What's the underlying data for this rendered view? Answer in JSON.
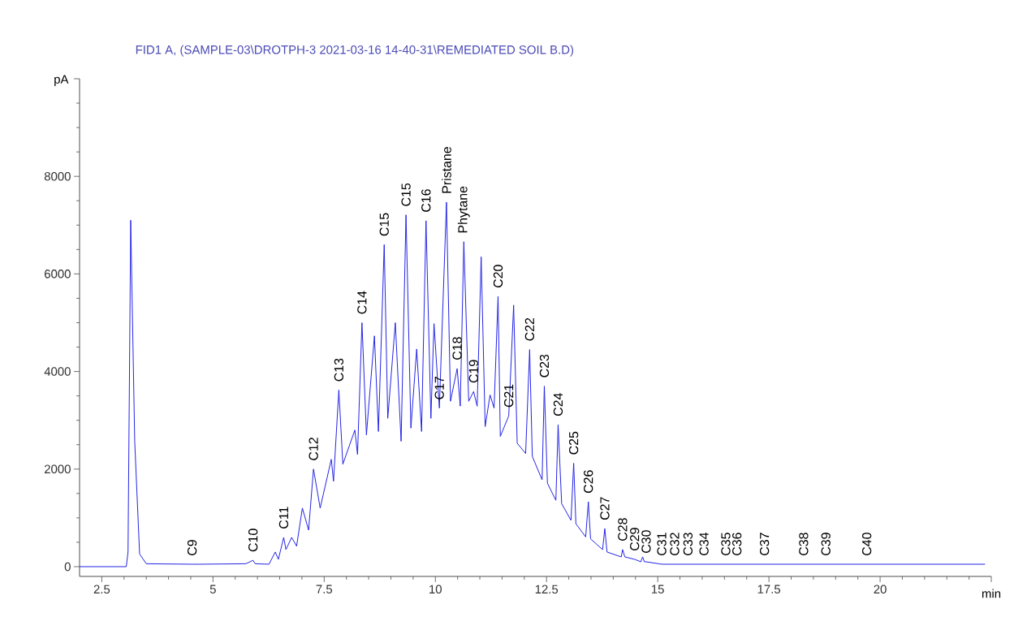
{
  "chart_data": {
    "type": "line",
    "title": "FID1 A,  (SAMPLE-03\\DROTPH-3 2021-03-16 14-40-31\\REMEDIATED SOIL B.D)",
    "xlabel": "min",
    "ylabel": "pA",
    "xlim": [
      2.0,
      22.5
    ],
    "ylim": [
      -200,
      10000
    ],
    "xticks": [
      2.5,
      5,
      7.5,
      10,
      12.5,
      15,
      17.5,
      20,
      {
        "value": 22.5,
        "label": null
      }
    ],
    "yticks": [
      0,
      2000,
      4000,
      6000,
      8000,
      {
        "value": 10000,
        "label": null
      }
    ],
    "series": [
      {
        "color": "#2323e6",
        "x": [
          2.0,
          3.05,
          3.09,
          3.15,
          3.24,
          3.35,
          3.5,
          4.53,
          4.7,
          5.74,
          5.9,
          5.95,
          6.26,
          6.4,
          6.47,
          6.59,
          6.64,
          6.77,
          6.88,
          7.01,
          7.15,
          7.26,
          7.41,
          7.66,
          7.71,
          7.83,
          7.92,
          8.19,
          8.25,
          8.35,
          8.45,
          8.63,
          8.72,
          8.85,
          8.93,
          9.1,
          9.23,
          9.34,
          9.45,
          9.58,
          9.69,
          9.79,
          9.9,
          9.97,
          10.09,
          10.25,
          10.34,
          10.49,
          10.56,
          10.64,
          10.75,
          10.86,
          10.94,
          11.03,
          11.12,
          11.23,
          11.32,
          11.41,
          11.46,
          11.65,
          11.76,
          11.84,
          12.03,
          12.12,
          12.18,
          12.4,
          12.45,
          12.52,
          12.71,
          12.76,
          12.84,
          13.05,
          13.11,
          13.16,
          13.38,
          13.44,
          13.49,
          13.76,
          13.81,
          13.86,
          14.18,
          14.21,
          14.26,
          14.48,
          14.62,
          14.66,
          14.7,
          14.74,
          15.09,
          15.38,
          15.68,
          16.04,
          16.4,
          16.53,
          16.78,
          17.4,
          18.28,
          18.78,
          19.7,
          22.36
        ],
        "values": [
          0,
          0,
          300,
          7100,
          2570,
          260,
          60,
          50,
          50,
          60,
          130,
          60,
          50,
          300,
          150,
          600,
          350,
          600,
          420,
          1200,
          750,
          2000,
          1200,
          2200,
          1750,
          3620,
          2100,
          2800,
          2300,
          5000,
          2700,
          4730,
          2770,
          6600,
          3040,
          5000,
          2570,
          7210,
          2840,
          4460,
          2770,
          7090,
          3040,
          4980,
          3250,
          7470,
          3390,
          4060,
          3290,
          6660,
          3390,
          3590,
          3290,
          6350,
          2870,
          3520,
          3250,
          5540,
          2670,
          3090,
          5360,
          2530,
          2320,
          4450,
          2260,
          1780,
          3700,
          1710,
          1360,
          2910,
          1290,
          950,
          2120,
          880,
          610,
          1330,
          570,
          350,
          780,
          300,
          200,
          350,
          200,
          150,
          100,
          200,
          100,
          100,
          50,
          50,
          50,
          50,
          50,
          50,
          50,
          50,
          50,
          50,
          50,
          50
        ]
      }
    ],
    "annotations": [
      {
        "text": "C9",
        "x": 4.53,
        "y": 50
      },
      {
        "text": "C10",
        "x": 5.9,
        "y": 130
      },
      {
        "text": "C11",
        "x": 6.59,
        "y": 600
      },
      {
        "text": "C12",
        "x": 7.26,
        "y": 2000
      },
      {
        "text": "C13",
        "x": 7.83,
        "y": 3620
      },
      {
        "text": "C14",
        "x": 8.35,
        "y": 5000
      },
      {
        "text": "C15",
        "x": 8.85,
        "y": 6600
      },
      {
        "text": "C15",
        "x": 9.34,
        "y": 7210
      },
      {
        "text": "C16",
        "x": 9.79,
        "y": 7090
      },
      {
        "text": "C17",
        "x": 10.09,
        "y": 3250
      },
      {
        "text": "Pristane",
        "x": 10.25,
        "y": 7470
      },
      {
        "text": "C18",
        "x": 10.49,
        "y": 4060
      },
      {
        "text": "Phytane",
        "x": 10.64,
        "y": 6660
      },
      {
        "text": "C19",
        "x": 10.86,
        "y": 3590
      },
      {
        "text": "C20",
        "x": 11.41,
        "y": 5540
      },
      {
        "text": "C21",
        "x": 11.65,
        "y": 3090
      },
      {
        "text": "C22",
        "x": 12.12,
        "y": 4450
      },
      {
        "text": "C23",
        "x": 12.45,
        "y": 3700
      },
      {
        "text": "C24",
        "x": 12.76,
        "y": 2910
      },
      {
        "text": "C25",
        "x": 13.11,
        "y": 2120
      },
      {
        "text": "C26",
        "x": 13.44,
        "y": 1330
      },
      {
        "text": "C27",
        "x": 13.81,
        "y": 780
      },
      {
        "text": "C28",
        "x": 14.21,
        "y": 350
      },
      {
        "text": "C29",
        "x": 14.48,
        "y": 150
      },
      {
        "text": "C30",
        "x": 14.74,
        "y": 100
      },
      {
        "text": "C31",
        "x": 15.09,
        "y": 50
      },
      {
        "text": "C32",
        "x": 15.38,
        "y": 50
      },
      {
        "text": "C33",
        "x": 15.68,
        "y": 50
      },
      {
        "text": "C34",
        "x": 16.04,
        "y": 50
      },
      {
        "text": "C35",
        "x": 16.53,
        "y": 50
      },
      {
        "text": "C36",
        "x": 16.78,
        "y": 50
      },
      {
        "text": "C37",
        "x": 17.4,
        "y": 50
      },
      {
        "text": "C38",
        "x": 18.28,
        "y": 50
      },
      {
        "text": "C39",
        "x": 18.78,
        "y": 50
      },
      {
        "text": "C40",
        "x": 19.7,
        "y": 50
      }
    ]
  }
}
